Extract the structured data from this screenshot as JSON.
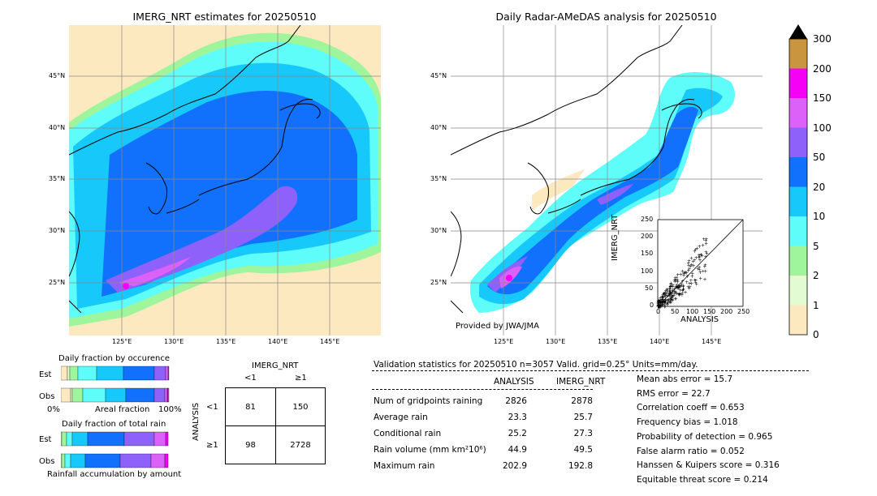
{
  "left_map": {
    "title": "IMERG_NRT estimates for 20250510",
    "lat_labels": [
      "45°N",
      "40°N",
      "35°N",
      "30°N",
      "25°N"
    ],
    "lon_labels": [
      "125°E",
      "130°E",
      "135°E",
      "140°E",
      "145°E"
    ]
  },
  "right_map": {
    "title": "Daily Radar-AMeDAS analysis for 20250510",
    "lat_labels": [
      "45°N",
      "40°N",
      "35°N",
      "30°N",
      "25°N"
    ],
    "lon_labels": [
      "125°E",
      "130°E",
      "135°E",
      "140°E",
      "145°E"
    ],
    "credit": "Provided by JWA/JMA"
  },
  "scatter": {
    "xlabel": "ANALYSIS",
    "ylabel": "IMERG_NRT",
    "ticks": [
      "0",
      "50",
      "100",
      "150",
      "200",
      "250"
    ]
  },
  "colorbar": {
    "labels": [
      "0",
      "1",
      "2",
      "5",
      "10",
      "20",
      "50",
      "100",
      "150",
      "200",
      "300"
    ],
    "colors": [
      "#fde9c0",
      "#e3fbd3",
      "#9ff59c",
      "#5ffdf9",
      "#17c8fb",
      "#1271fc",
      "#8e62fa",
      "#dc61f9",
      "#f501f5",
      "#c9953e"
    ]
  },
  "occurrence": {
    "title": "Daily fraction by occurence",
    "rows": [
      "Est",
      "Obs"
    ],
    "x_left": "0%",
    "x_mid": "Areal fraction",
    "x_right": "100%"
  },
  "total_rain": {
    "title": "Daily fraction of total rain",
    "rows": [
      "Est",
      "Obs"
    ],
    "footer": "Rainfall accumulation by amount"
  },
  "contingency": {
    "col_header": "IMERG_NRT",
    "col_labels": [
      "<1",
      "≥1"
    ],
    "row_header": "ANALYSIS",
    "row_labels": [
      "<1",
      "≥1"
    ],
    "cells": [
      "81",
      "150",
      "98",
      "2728"
    ]
  },
  "validation": {
    "header": "Validation statistics for 20250510  n=3057 Valid. grid=0.25° Units=mm/day.",
    "col_analysis": "ANALYSIS",
    "col_imerg": "IMERG_NRT",
    "rows": [
      {
        "label": "Num of gridpoints raining",
        "analysis": "2826",
        "imerg": "2878"
      },
      {
        "label": "Average rain",
        "analysis": "23.3",
        "imerg": "25.7"
      },
      {
        "label": "Conditional rain",
        "analysis": "25.2",
        "imerg": "27.3"
      },
      {
        "label": "Rain volume (mm km²10⁶)",
        "analysis": "44.9",
        "imerg": "49.5"
      },
      {
        "label": "Maximum rain",
        "analysis": "202.9",
        "imerg": "192.8"
      }
    ],
    "scores": [
      "Mean abs error =   15.7",
      "RMS error =   22.7",
      "Correlation coeff =  0.653",
      "Frequency bias =  1.018",
      "Probability of detection =  0.965",
      "False alarm ratio =  0.052",
      "Hanssen & Kuipers score =  0.316",
      "Equitable threat score =  0.214"
    ]
  }
}
